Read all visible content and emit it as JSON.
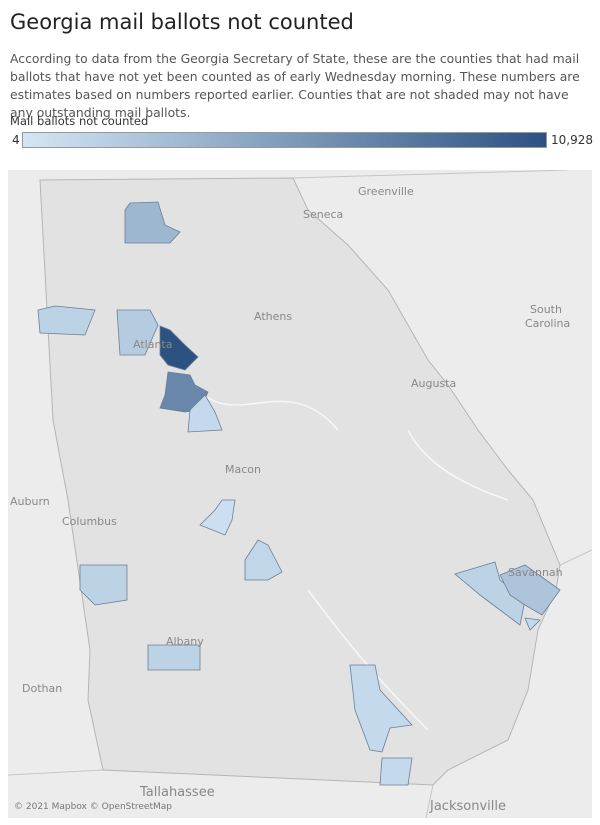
{
  "title": "Georgia mail ballots not counted",
  "description": "According to data from the Georgia Secretary of State, these are the counties that had mail ballots that have not yet been counted as of early Wednesday morning. These numbers are estimates based on numbers reported earlier. Counties that are not shaded may not have any outstanding mail ballots.",
  "legend": {
    "title": "Mail ballots not counted",
    "min": 4,
    "max": {
      "value": 10928,
      "label": "10,928"
    },
    "colors": [
      "#d3e6f5",
      "#2c5282"
    ]
  },
  "map": {
    "labels": [
      "Greenville",
      "Seneca",
      "Athens",
      "South",
      "Carolina",
      "Atlanta",
      "Augusta",
      "Macon",
      "Auburn",
      "Columbus",
      "Savannah",
      "Albany",
      "Dothan",
      "Tallahassee",
      "Jacksonville"
    ],
    "county_values": [
      3500,
      1500,
      2000,
      10928,
      7000,
      1000,
      500,
      1200,
      1500,
      1500,
      1000,
      1000,
      1500,
      2500,
      1000
    ]
  },
  "attribution": "© 2021 Mapbox © OpenStreetMap"
}
